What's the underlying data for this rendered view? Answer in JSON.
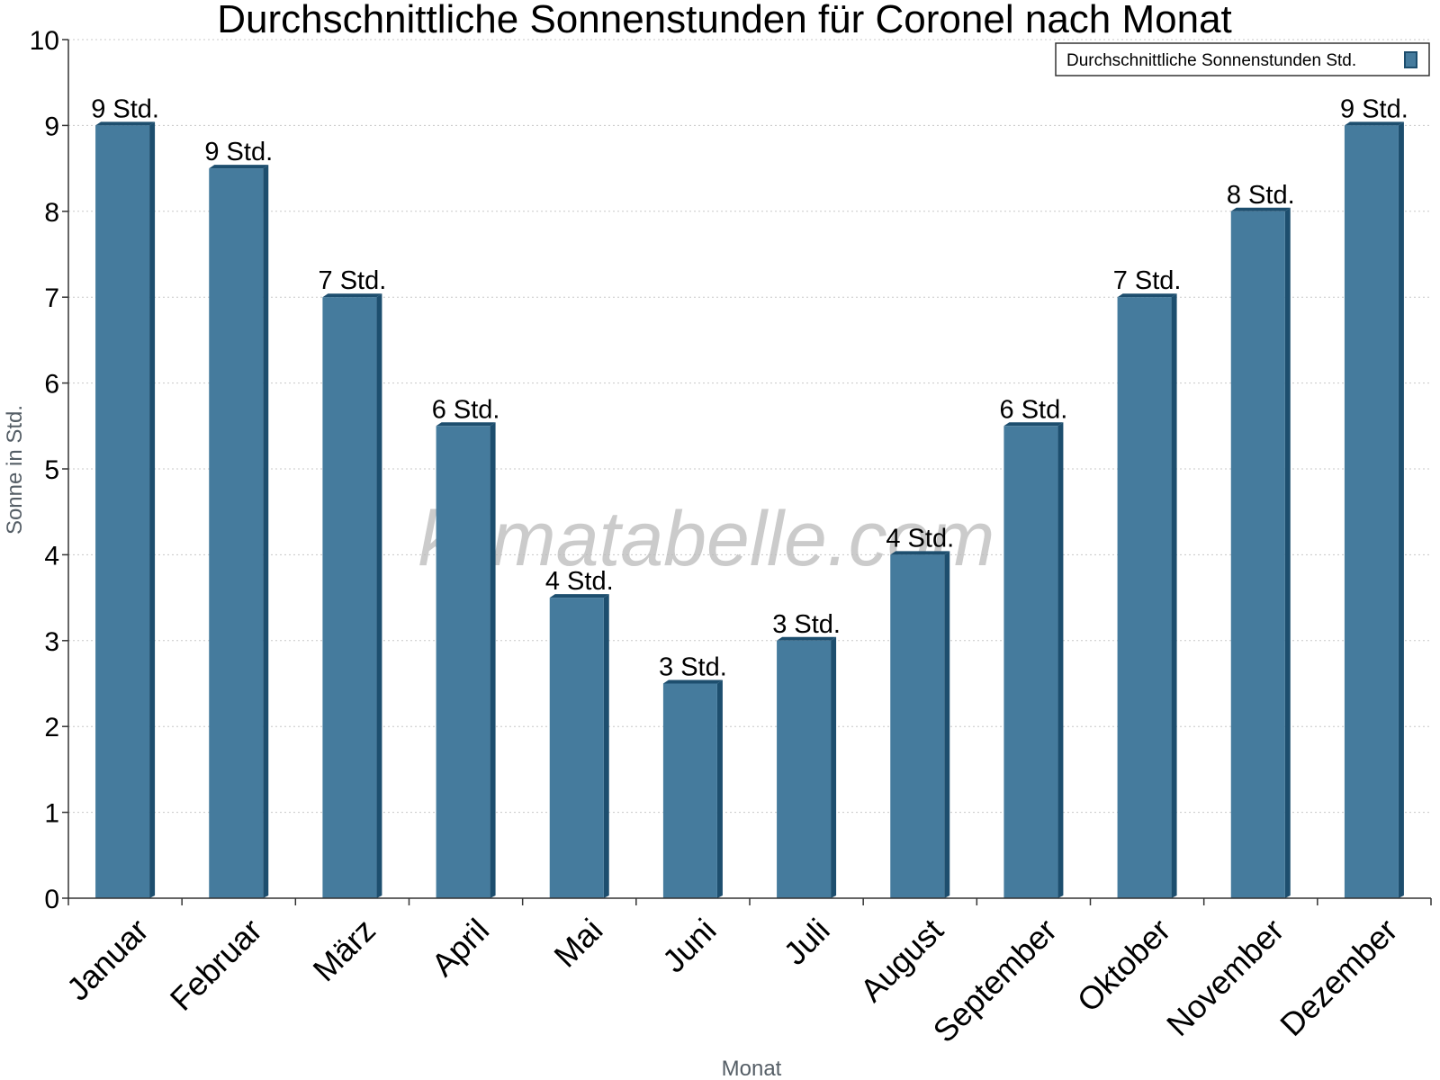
{
  "chart_data": {
    "type": "bar",
    "title": "Durchschnittliche Sonnenstunden für Coronel nach Monat",
    "xlabel": "Monat",
    "ylabel": "Sonne in Std.",
    "ylim": [
      0,
      10
    ],
    "yticks": [
      0,
      1,
      2,
      3,
      4,
      5,
      6,
      7,
      8,
      9,
      10
    ],
    "categories": [
      "Januar",
      "Februar",
      "März",
      "April",
      "Mai",
      "Juni",
      "Juli",
      "August",
      "September",
      "Oktober",
      "November",
      "Dezember"
    ],
    "series": [
      {
        "name": "Durchschnittliche Sonnenstunden Std.",
        "values": [
          9,
          8.5,
          7,
          5.5,
          3.5,
          2.5,
          3,
          4,
          5.5,
          7,
          8,
          9
        ],
        "labels": [
          "9 Std.",
          "9 Std.",
          "7 Std.",
          "6 Std.",
          "4 Std.",
          "3 Std.",
          "3 Std.",
          "4 Std.",
          "6 Std.",
          "7 Std.",
          "8 Std.",
          "9 Std."
        ]
      }
    ],
    "grid": true,
    "legend_position": "top-right",
    "watermark": "klimatabelle.com",
    "colors": {
      "bar": "#457b9d",
      "bar_side": "#1d4e6e",
      "grid": "#c8c8c8",
      "axis_title": "#555e66"
    }
  }
}
